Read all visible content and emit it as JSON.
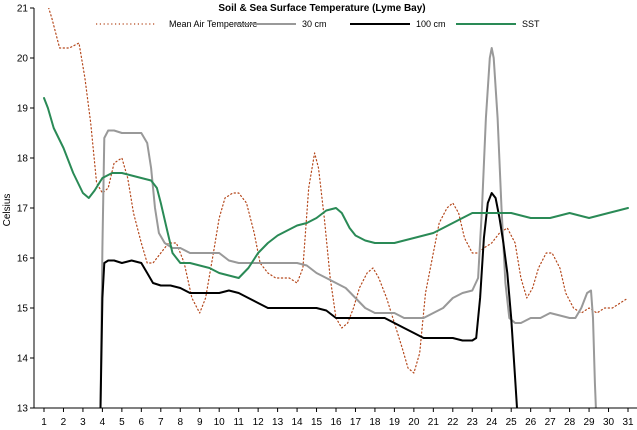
{
  "chart_data": {
    "type": "line",
    "title": "Soil & Sea Surface Temperature (Lyme Bay)",
    "xlabel": "",
    "ylabel": "Celsius",
    "xlim": [
      1,
      31.3
    ],
    "ylim": [
      13,
      21
    ],
    "x_ticks": [
      1,
      2,
      3,
      4,
      5,
      6,
      7,
      8,
      9,
      10,
      11,
      12,
      13,
      14,
      15,
      16,
      17,
      18,
      19,
      20,
      21,
      22,
      23,
      24,
      25,
      26,
      27,
      28,
      29,
      30,
      31
    ],
    "y_ticks": [
      13,
      14,
      15,
      16,
      17,
      18,
      19,
      20,
      21
    ],
    "grid": false,
    "legend_position": "top",
    "series": [
      {
        "name": "Mean Air Temperature",
        "color": "#b5481c",
        "style": "dotted",
        "points": [
          [
            1.0,
            21.3
          ],
          [
            1.4,
            20.8
          ],
          [
            1.8,
            20.2
          ],
          [
            2.3,
            20.2
          ],
          [
            2.8,
            20.3
          ],
          [
            3.1,
            19.6
          ],
          [
            3.4,
            18.7
          ],
          [
            3.7,
            17.5
          ],
          [
            4.0,
            17.3
          ],
          [
            4.3,
            17.4
          ],
          [
            4.6,
            17.9
          ],
          [
            5.0,
            18.0
          ],
          [
            5.3,
            17.6
          ],
          [
            5.6,
            16.9
          ],
          [
            6.0,
            16.3
          ],
          [
            6.3,
            15.9
          ],
          [
            6.6,
            15.9
          ],
          [
            7.0,
            16.1
          ],
          [
            7.4,
            16.3
          ],
          [
            7.8,
            16.3
          ],
          [
            8.2,
            15.9
          ],
          [
            8.6,
            15.2
          ],
          [
            9.0,
            14.9
          ],
          [
            9.3,
            15.2
          ],
          [
            9.7,
            16.1
          ],
          [
            10.0,
            16.8
          ],
          [
            10.3,
            17.2
          ],
          [
            10.7,
            17.3
          ],
          [
            11.0,
            17.3
          ],
          [
            11.4,
            17.1
          ],
          [
            11.8,
            16.5
          ],
          [
            12.1,
            15.9
          ],
          [
            12.5,
            15.7
          ],
          [
            12.9,
            15.6
          ],
          [
            13.2,
            15.6
          ],
          [
            13.6,
            15.6
          ],
          [
            14.0,
            15.5
          ],
          [
            14.3,
            15.8
          ],
          [
            14.6,
            17.4
          ],
          [
            14.9,
            18.1
          ],
          [
            15.1,
            17.8
          ],
          [
            15.4,
            16.8
          ],
          [
            15.7,
            15.6
          ],
          [
            16.0,
            14.8
          ],
          [
            16.3,
            14.6
          ],
          [
            16.6,
            14.7
          ],
          [
            16.9,
            15.0
          ],
          [
            17.2,
            15.4
          ],
          [
            17.6,
            15.7
          ],
          [
            17.9,
            15.8
          ],
          [
            18.2,
            15.6
          ],
          [
            18.6,
            15.2
          ],
          [
            19.0,
            14.7
          ],
          [
            19.4,
            14.2
          ],
          [
            19.7,
            13.8
          ],
          [
            20.0,
            13.7
          ],
          [
            20.3,
            14.1
          ],
          [
            20.6,
            15.3
          ],
          [
            21.0,
            16.1
          ],
          [
            21.3,
            16.7
          ],
          [
            21.7,
            17.0
          ],
          [
            22.0,
            17.1
          ],
          [
            22.3,
            16.9
          ],
          [
            22.6,
            16.4
          ],
          [
            23.0,
            16.1
          ],
          [
            23.3,
            16.1
          ],
          [
            23.6,
            16.2
          ],
          [
            24.0,
            16.3
          ],
          [
            24.4,
            16.5
          ],
          [
            24.8,
            16.6
          ],
          [
            25.2,
            16.3
          ],
          [
            25.5,
            15.6
          ],
          [
            25.8,
            15.2
          ],
          [
            26.1,
            15.4
          ],
          [
            26.4,
            15.8
          ],
          [
            26.8,
            16.1
          ],
          [
            27.1,
            16.1
          ],
          [
            27.5,
            15.8
          ],
          [
            27.8,
            15.3
          ],
          [
            28.2,
            15.0
          ],
          [
            28.6,
            14.9
          ],
          [
            29.0,
            15.0
          ],
          [
            29.4,
            14.9
          ],
          [
            29.8,
            15.0
          ],
          [
            30.2,
            15.0
          ],
          [
            30.6,
            15.1
          ],
          [
            31.0,
            15.2
          ]
        ]
      },
      {
        "name": "30 cm",
        "color": "#999999",
        "style": "solid",
        "points": [
          [
            3.9,
            13.0
          ],
          [
            4.0,
            16.2
          ],
          [
            4.1,
            18.4
          ],
          [
            4.3,
            18.55
          ],
          [
            4.6,
            18.55
          ],
          [
            5.0,
            18.5
          ],
          [
            5.5,
            18.5
          ],
          [
            6.0,
            18.5
          ],
          [
            6.3,
            18.3
          ],
          [
            6.5,
            17.8
          ],
          [
            6.7,
            17.0
          ],
          [
            6.9,
            16.5
          ],
          [
            7.2,
            16.3
          ],
          [
            7.6,
            16.2
          ],
          [
            8.0,
            16.2
          ],
          [
            8.5,
            16.1
          ],
          [
            9.0,
            16.1
          ],
          [
            9.5,
            16.1
          ],
          [
            10.0,
            16.1
          ],
          [
            10.5,
            15.95
          ],
          [
            11.0,
            15.9
          ],
          [
            11.5,
            15.9
          ],
          [
            12.0,
            15.9
          ],
          [
            12.5,
            15.9
          ],
          [
            13.0,
            15.9
          ],
          [
            13.5,
            15.9
          ],
          [
            14.0,
            15.9
          ],
          [
            14.5,
            15.85
          ],
          [
            15.0,
            15.7
          ],
          [
            15.5,
            15.6
          ],
          [
            16.0,
            15.5
          ],
          [
            16.5,
            15.4
          ],
          [
            17.0,
            15.2
          ],
          [
            17.5,
            15.0
          ],
          [
            18.0,
            14.9
          ],
          [
            18.5,
            14.9
          ],
          [
            19.0,
            14.9
          ],
          [
            19.5,
            14.8
          ],
          [
            20.0,
            14.8
          ],
          [
            20.5,
            14.8
          ],
          [
            21.0,
            14.9
          ],
          [
            21.5,
            15.0
          ],
          [
            22.0,
            15.2
          ],
          [
            22.5,
            15.3
          ],
          [
            23.0,
            15.35
          ],
          [
            23.3,
            15.6
          ],
          [
            23.5,
            17.0
          ],
          [
            23.7,
            18.8
          ],
          [
            23.9,
            20.0
          ],
          [
            24.0,
            20.2
          ],
          [
            24.1,
            20.0
          ],
          [
            24.3,
            18.8
          ],
          [
            24.5,
            17.0
          ],
          [
            24.7,
            15.5
          ],
          [
            24.9,
            14.8
          ],
          [
            25.2,
            14.7
          ],
          [
            25.5,
            14.7
          ],
          [
            26.0,
            14.8
          ],
          [
            26.5,
            14.8
          ],
          [
            27.0,
            14.9
          ],
          [
            27.5,
            14.85
          ],
          [
            28.0,
            14.8
          ],
          [
            28.3,
            14.8
          ],
          [
            28.6,
            15.0
          ],
          [
            28.9,
            15.3
          ],
          [
            29.1,
            15.35
          ],
          [
            29.2,
            14.8
          ],
          [
            29.3,
            13.5
          ],
          [
            29.35,
            13.0
          ]
        ]
      },
      {
        "name": "100 cm",
        "color": "#000000",
        "style": "solid",
        "points": [
          [
            3.9,
            13.0
          ],
          [
            4.0,
            15.2
          ],
          [
            4.1,
            15.9
          ],
          [
            4.3,
            15.95
          ],
          [
            4.6,
            15.95
          ],
          [
            5.0,
            15.9
          ],
          [
            5.5,
            15.95
          ],
          [
            6.0,
            15.9
          ],
          [
            6.3,
            15.7
          ],
          [
            6.6,
            15.5
          ],
          [
            7.0,
            15.45
          ],
          [
            7.5,
            15.45
          ],
          [
            8.0,
            15.4
          ],
          [
            8.5,
            15.3
          ],
          [
            9.0,
            15.3
          ],
          [
            9.5,
            15.3
          ],
          [
            10.0,
            15.3
          ],
          [
            10.5,
            15.35
          ],
          [
            11.0,
            15.3
          ],
          [
            11.5,
            15.2
          ],
          [
            12.0,
            15.1
          ],
          [
            12.5,
            15.0
          ],
          [
            13.0,
            15.0
          ],
          [
            13.5,
            15.0
          ],
          [
            14.0,
            15.0
          ],
          [
            14.5,
            15.0
          ],
          [
            15.0,
            15.0
          ],
          [
            15.5,
            14.95
          ],
          [
            16.0,
            14.8
          ],
          [
            16.5,
            14.8
          ],
          [
            17.0,
            14.8
          ],
          [
            17.5,
            14.8
          ],
          [
            18.0,
            14.8
          ],
          [
            18.5,
            14.8
          ],
          [
            19.0,
            14.7
          ],
          [
            19.5,
            14.6
          ],
          [
            20.0,
            14.5
          ],
          [
            20.5,
            14.4
          ],
          [
            21.0,
            14.4
          ],
          [
            21.5,
            14.4
          ],
          [
            22.0,
            14.4
          ],
          [
            22.5,
            14.35
          ],
          [
            23.0,
            14.35
          ],
          [
            23.2,
            14.4
          ],
          [
            23.4,
            15.2
          ],
          [
            23.6,
            16.4
          ],
          [
            23.8,
            17.1
          ],
          [
            24.0,
            17.3
          ],
          [
            24.2,
            17.2
          ],
          [
            24.4,
            16.8
          ],
          [
            24.6,
            16.3
          ],
          [
            24.8,
            15.7
          ],
          [
            25.0,
            14.8
          ],
          [
            25.2,
            13.6
          ],
          [
            25.3,
            13.0
          ]
        ]
      },
      {
        "name": "SST",
        "color": "#2a8a56",
        "style": "solid",
        "points": [
          [
            1.0,
            19.2
          ],
          [
            1.2,
            19.0
          ],
          [
            1.5,
            18.6
          ],
          [
            2.0,
            18.2
          ],
          [
            2.5,
            17.7
          ],
          [
            3.0,
            17.3
          ],
          [
            3.3,
            17.2
          ],
          [
            3.6,
            17.35
          ],
          [
            4.0,
            17.6
          ],
          [
            4.5,
            17.7
          ],
          [
            5.0,
            17.7
          ],
          [
            5.5,
            17.65
          ],
          [
            6.0,
            17.6
          ],
          [
            6.5,
            17.55
          ],
          [
            6.8,
            17.4
          ],
          [
            7.0,
            17.1
          ],
          [
            7.3,
            16.6
          ],
          [
            7.6,
            16.1
          ],
          [
            8.0,
            15.9
          ],
          [
            8.5,
            15.9
          ],
          [
            9.0,
            15.85
          ],
          [
            9.5,
            15.8
          ],
          [
            10.0,
            15.7
          ],
          [
            10.5,
            15.65
          ],
          [
            11.0,
            15.6
          ],
          [
            11.5,
            15.8
          ],
          [
            12.0,
            16.1
          ],
          [
            12.5,
            16.3
          ],
          [
            13.0,
            16.45
          ],
          [
            13.5,
            16.55
          ],
          [
            14.0,
            16.65
          ],
          [
            14.5,
            16.7
          ],
          [
            15.0,
            16.8
          ],
          [
            15.5,
            16.95
          ],
          [
            16.0,
            17.0
          ],
          [
            16.3,
            16.9
          ],
          [
            16.7,
            16.6
          ],
          [
            17.0,
            16.45
          ],
          [
            17.5,
            16.35
          ],
          [
            18.0,
            16.3
          ],
          [
            18.5,
            16.3
          ],
          [
            19.0,
            16.3
          ],
          [
            19.5,
            16.35
          ],
          [
            20.0,
            16.4
          ],
          [
            20.5,
            16.45
          ],
          [
            21.0,
            16.5
          ],
          [
            21.5,
            16.6
          ],
          [
            22.0,
            16.7
          ],
          [
            22.5,
            16.8
          ],
          [
            23.0,
            16.9
          ],
          [
            23.5,
            16.9
          ],
          [
            24.0,
            16.9
          ],
          [
            24.5,
            16.9
          ],
          [
            25.0,
            16.9
          ],
          [
            25.5,
            16.85
          ],
          [
            26.0,
            16.8
          ],
          [
            26.5,
            16.8
          ],
          [
            27.0,
            16.8
          ],
          [
            27.5,
            16.85
          ],
          [
            28.0,
            16.9
          ],
          [
            28.5,
            16.85
          ],
          [
            29.0,
            16.8
          ],
          [
            29.5,
            16.85
          ],
          [
            30.0,
            16.9
          ],
          [
            30.5,
            16.95
          ],
          [
            31.0,
            17.0
          ]
        ]
      }
    ]
  }
}
